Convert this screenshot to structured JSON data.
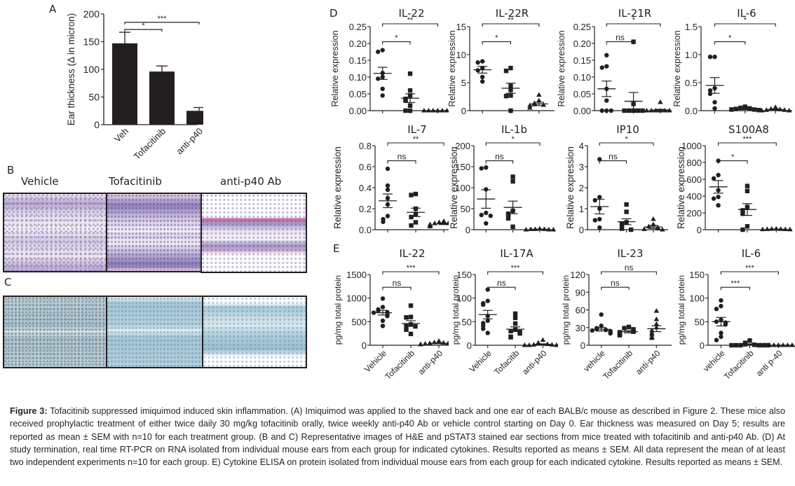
{
  "panel_labels": {
    "A": "A",
    "B": "B",
    "C": "C",
    "D": "D",
    "E": "E"
  },
  "histology": {
    "columns": [
      "Vehicle",
      "Tofacitinib",
      "anti-p40 Ab"
    ],
    "rows": [
      {
        "panel": "B",
        "stain": "H&E"
      },
      {
        "panel": "C",
        "stain": "pSTAT3"
      }
    ]
  },
  "caption": {
    "label": "Figure 3:",
    "text": " Tofacitinib suppressed imiquimod induced skin inflammation. (A) Imiquimod was applied to the shaved back and one ear of each BALB/c mouse as described in Figure 2. These mice also received prophylactic treatment of either twice daily 30 mg/kg tofacitinib orally, twice weekly anti-p40 Ab or vehicle control starting on Day 0. Ear thickness was measured on Day 5; results are reported as mean ± SEM with n=10 for each treatment group. (B and C) Representative images of H&E and pSTAT3 stained ear sections from mice treated with tofacitinib and anti-p40 Ab. (D) At study termination, real time RT-PCR on RNA isolated from individual mouse ears from each group for indicated cytokines. Results reported as means ± SEM. All data represent the mean of at least two independent experiments n=10 for each group. E) Cytokine ELISA on protein isolated from individual mouse ears from each group for each indicated cytokine. Results reported as means ± SEM."
  },
  "chart_data": [
    {
      "id": "A",
      "type": "bar",
      "title": "",
      "ylabel": "Ear thickness (Δ in micron)",
      "xlabel": "",
      "categories": [
        "Veh",
        "Tofacitinib",
        "anti-p40"
      ],
      "values": [
        147,
        96,
        25
      ],
      "errors": [
        20,
        10,
        6
      ],
      "ylim": [
        0,
        200
      ],
      "yticks": [
        "0",
        "50",
        "100",
        "150",
        "200"
      ],
      "significance": [
        {
          "from": 0,
          "to": 1,
          "label": "*"
        },
        {
          "from": 0,
          "to": 2,
          "label": "***"
        }
      ]
    },
    {
      "id": "D-IL-22",
      "type": "scatter",
      "title": "IL-22",
      "ylabel": "Relative expression",
      "categories": [
        "Vehicle",
        "Tofacitinib",
        "anti-p40"
      ],
      "ylim": [
        0,
        0.25
      ],
      "yticks": [
        "0.00",
        "0.05",
        "0.10",
        "0.15",
        "0.20",
        "0.25"
      ],
      "series": [
        {
          "name": "Vehicle",
          "marker": "circle",
          "values": [
            0.18,
            0.175,
            0.112,
            0.1,
            0.095,
            0.065,
            0.045
          ],
          "mean": 0.111,
          "sem": 0.018
        },
        {
          "name": "Tofacitinib",
          "marker": "square",
          "values": [
            0.11,
            0.06,
            0.045,
            0.035,
            0.03,
            0.015,
            0.0,
            0.0
          ],
          "mean": 0.037,
          "sem": 0.013
        },
        {
          "name": "anti-p40",
          "marker": "triangle",
          "values": [
            0,
            0,
            0,
            0,
            0,
            0,
            0
          ],
          "mean": 0.0,
          "sem": 0.0
        }
      ],
      "significance": [
        {
          "from": 0,
          "to": 1,
          "label": "*"
        },
        {
          "from": 0,
          "to": 2,
          "label": "**"
        }
      ]
    },
    {
      "id": "D-IL-22R",
      "type": "scatter",
      "title": "IL-22R",
      "ylabel": "Relative expression",
      "categories": [
        "Vehicle",
        "Tofacitinib",
        "anti-p40"
      ],
      "ylim": [
        0,
        15
      ],
      "yticks": [
        "0",
        "5",
        "10",
        "15"
      ],
      "series": [
        {
          "name": "Vehicle",
          "marker": "circle",
          "values": [
            8.8,
            8.6,
            7.6,
            7.2,
            6.0,
            5.2
          ],
          "mean": 7.3,
          "sem": 0.6
        },
        {
          "name": "Tofacitinib",
          "marker": "square",
          "values": [
            7.6,
            7.1,
            4.4,
            3.7,
            2.7,
            2.6,
            0.0
          ],
          "mean": 4.0,
          "sem": 0.9
        },
        {
          "name": "anti-p40",
          "marker": "triangle",
          "values": [
            2.8,
            1.8,
            1.3,
            1.1,
            1.0,
            0.9,
            0.5
          ],
          "mean": 1.2,
          "sem": 0.3
        }
      ],
      "significance": [
        {
          "from": 0,
          "to": 1,
          "label": "*"
        },
        {
          "from": 0,
          "to": 2,
          "label": "**"
        }
      ]
    },
    {
      "id": "D-IL-21R",
      "type": "scatter",
      "title": "IL-21R",
      "ylabel": "Relative expression",
      "categories": [
        "Vehicle",
        "Tofacitinib",
        "anti-p40"
      ],
      "ylim": [
        0,
        0.25
      ],
      "yticks": [
        "0.00",
        "0.05",
        "0.10",
        "0.15",
        "0.20",
        "0.25"
      ],
      "series": [
        {
          "name": "Vehicle",
          "marker": "circle",
          "values": [
            0.165,
            0.132,
            0.128,
            0.065,
            0.03,
            0.0,
            0.0,
            0.0
          ],
          "mean": 0.065,
          "sem": 0.023
        },
        {
          "name": "Tofacitinib",
          "marker": "square",
          "values": [
            0.205,
            0.02,
            0.0,
            0.0,
            0.0,
            0.0,
            0.0
          ],
          "mean": 0.028,
          "sem": 0.026
        },
        {
          "name": "anti-p40",
          "marker": "triangle",
          "values": [
            0.025,
            0,
            0,
            0,
            0,
            0,
            0
          ],
          "mean": 0.002,
          "sem": 0.002
        }
      ],
      "significance": [
        {
          "from": 0,
          "to": 1,
          "label": "ns"
        },
        {
          "from": 0,
          "to": 2,
          "label": "*"
        }
      ]
    },
    {
      "id": "D-IL-6",
      "type": "scatter",
      "title": "IL-6",
      "ylabel": "Relative expression",
      "categories": [
        "Vehicle",
        "Tofacitinib",
        "anti-p40"
      ],
      "ylim": [
        0,
        1.5
      ],
      "yticks": [
        "0.0",
        "0.5",
        "1.0",
        "1.5"
      ],
      "series": [
        {
          "name": "Vehicle",
          "marker": "circle",
          "values": [
            0.96,
            0.96,
            0.4,
            0.36,
            0.3,
            0.15,
            0.04
          ],
          "mean": 0.45,
          "sem": 0.14
        },
        {
          "name": "Tofacitinib",
          "marker": "square",
          "values": [
            0.07,
            0.05,
            0.04,
            0.03,
            0.02,
            0.02,
            0.01
          ],
          "mean": 0.03,
          "sem": 0.01
        },
        {
          "name": "anti-p40",
          "marker": "triangle",
          "values": [
            0.06,
            0.03,
            0.02,
            0.01,
            0.01,
            0.0,
            0.0
          ],
          "mean": 0.02,
          "sem": 0.01
        }
      ],
      "significance": [
        {
          "from": 0,
          "to": 1,
          "label": "*"
        },
        {
          "from": 0,
          "to": 2,
          "label": "*"
        }
      ]
    },
    {
      "id": "D-IL-7",
      "type": "scatter",
      "title": "IL-7",
      "ylabel": "Relative expression",
      "categories": [
        "Vehicle",
        "Tofacitinib",
        "anti-p40"
      ],
      "ylim": [
        0,
        0.8
      ],
      "yticks": [
        "0.0",
        "0.2",
        "0.4",
        "0.6",
        "0.8"
      ],
      "series": [
        {
          "name": "Vehicle",
          "marker": "circle",
          "values": [
            0.58,
            0.42,
            0.38,
            0.3,
            0.24,
            0.13,
            0.1,
            0.075
          ],
          "mean": 0.275,
          "sem": 0.065
        },
        {
          "name": "Tofacitinib",
          "marker": "square",
          "values": [
            0.34,
            0.33,
            0.2,
            0.15,
            0.12,
            0.07,
            0.04
          ],
          "mean": 0.165,
          "sem": 0.04
        },
        {
          "name": "anti-p40",
          "marker": "triangle",
          "values": [
            0.08,
            0.07,
            0.06,
            0.06,
            0.05,
            0.05,
            0.04,
            0.03
          ],
          "mean": 0.055,
          "sem": 0.006
        }
      ],
      "significance": [
        {
          "from": 0,
          "to": 1,
          "label": "ns"
        },
        {
          "from": 0,
          "to": 2,
          "label": "**"
        }
      ]
    },
    {
      "id": "D-IL-1b",
      "type": "scatter",
      "title": "IL-1b",
      "ylabel": "Relative expression",
      "categories": [
        "Vehicle",
        "Tofacitinib",
        "anti-p40"
      ],
      "ylim": [
        0,
        200
      ],
      "yticks": [
        "0",
        "50",
        "100",
        "150",
        "200"
      ],
      "series": [
        {
          "name": "Vehicle",
          "marker": "circle",
          "values": [
            148,
            146,
            96,
            40,
            35,
            33,
            15
          ],
          "mean": 73,
          "sem": 22
        },
        {
          "name": "Tofacitinib",
          "marker": "square",
          "values": [
            126,
            115,
            45,
            38,
            35,
            27,
            7
          ],
          "mean": 53,
          "sem": 15
        },
        {
          "name": "anti-p40",
          "marker": "triangle",
          "values": [
            2,
            1,
            1,
            1,
            0,
            0,
            0
          ],
          "mean": 1,
          "sem": 0.3
        }
      ],
      "significance": [
        {
          "from": 0,
          "to": 1,
          "label": "ns"
        },
        {
          "from": 0,
          "to": 2,
          "label": "*"
        }
      ]
    },
    {
      "id": "D-IP10",
      "type": "scatter",
      "title": "IP10",
      "ylabel": "Relative expression",
      "categories": [
        "Vehicle",
        "Tofacitinib",
        "anti-p40"
      ],
      "ylim": [
        0,
        4
      ],
      "yticks": [
        "0",
        "1",
        "2",
        "3",
        "4"
      ],
      "series": [
        {
          "name": "Vehicle",
          "marker": "circle",
          "values": [
            3.35,
            1.55,
            1.4,
            1.0,
            0.5,
            0.45,
            0.1
          ],
          "mean": 1.1,
          "sem": 0.35
        },
        {
          "name": "Tofacitinib",
          "marker": "square",
          "values": [
            1.2,
            0.85,
            0.35,
            0.3,
            0.15,
            0.05,
            0.0
          ],
          "mean": 0.38,
          "sem": 0.14
        },
        {
          "name": "anti-p40",
          "marker": "triangle",
          "values": [
            0.5,
            0.25,
            0.15,
            0.1,
            0.05,
            0.02,
            0.0
          ],
          "mean": 0.13,
          "sem": 0.07
        }
      ],
      "significance": [
        {
          "from": 0,
          "to": 1,
          "label": "ns"
        },
        {
          "from": 0,
          "to": 2,
          "label": "*"
        }
      ]
    },
    {
      "id": "D-S100A8",
      "type": "scatter",
      "title": "S100A8",
      "ylabel": "Relative expression",
      "categories": [
        "Vehicle",
        "Tofacitinib",
        "anti-p40"
      ],
      "ylim": [
        0,
        1000
      ],
      "yticks": [
        "0",
        "200",
        "400",
        "600",
        "800",
        "1000"
      ],
      "series": [
        {
          "name": "Vehicle",
          "marker": "circle",
          "values": [
            820,
            650,
            610,
            470,
            390,
            370,
            290
          ],
          "mean": 510,
          "sem": 75
        },
        {
          "name": "Tofacitinib",
          "marker": "square",
          "values": [
            520,
            460,
            270,
            230,
            190,
            40,
            0
          ],
          "mean": 240,
          "sem": 70
        },
        {
          "name": "anti-p40",
          "marker": "triangle",
          "values": [
            10,
            8,
            6,
            5,
            4,
            3,
            2
          ],
          "mean": 5,
          "sem": 1
        }
      ],
      "significance": [
        {
          "from": 0,
          "to": 1,
          "label": "*"
        },
        {
          "from": 0,
          "to": 2,
          "label": "***"
        }
      ]
    },
    {
      "id": "E-IL-22",
      "type": "scatter",
      "title": "IL-22",
      "ylabel": "pg/mg total protein",
      "categories": [
        "Vehicle",
        "Tofacitinib",
        "anti-p40"
      ],
      "ylim": [
        0,
        1500
      ],
      "yticks": [
        "0",
        "500",
        "1000",
        "1500"
      ],
      "series": [
        {
          "name": "Vehicle",
          "marker": "circle",
          "values": [
            990,
            810,
            760,
            730,
            700,
            690,
            650,
            620,
            520,
            410
          ],
          "mean": 690,
          "sem": 50
        },
        {
          "name": "Tofacitinib",
          "marker": "square",
          "values": [
            840,
            600,
            590,
            440,
            420,
            400,
            330,
            240
          ],
          "mean": 460,
          "sem": 60
        },
        {
          "name": "anti-p40",
          "marker": "triangle",
          "values": [
            90,
            60,
            50,
            40,
            35,
            30,
            25,
            20,
            15,
            10
          ],
          "mean": 40,
          "sem": 8
        }
      ],
      "significance": [
        {
          "from": 0,
          "to": 1,
          "label": "ns"
        },
        {
          "from": 0,
          "to": 2,
          "label": "***"
        }
      ]
    },
    {
      "id": "E-IL-17A",
      "type": "scatter",
      "title": "IL-17A",
      "ylabel": "pg/mg total protein",
      "categories": [
        "Vehicle",
        "Tofacitib",
        "anti-p40"
      ],
      "ylim": [
        0,
        150
      ],
      "yticks": [
        "0",
        "50",
        "100",
        "150"
      ],
      "series": [
        {
          "name": "Vehicle",
          "marker": "circle",
          "values": [
            118,
            94,
            89,
            86,
            62,
            52,
            47,
            41,
            35,
            26
          ],
          "mean": 65,
          "sem": 9
        },
        {
          "name": "Tofacitinib",
          "marker": "square",
          "values": [
            67,
            58,
            46,
            33,
            30,
            28,
            25,
            18,
            17
          ],
          "mean": 34,
          "sem": 5
        },
        {
          "name": "anti-p40",
          "marker": "triangle",
          "values": [
            11,
            5,
            3,
            2,
            1,
            1,
            0,
            0,
            0
          ],
          "mean": 2,
          "sem": 1
        }
      ],
      "significance": [
        {
          "from": 0,
          "to": 1,
          "label": "ns"
        },
        {
          "from": 0,
          "to": 2,
          "label": "***"
        }
      ]
    },
    {
      "id": "E-IL-23",
      "type": "scatter",
      "title": "IL-23",
      "ylabel": "pg/mg total protein",
      "categories": [
        "vehicle",
        "Tofacitinib",
        "anti-p40"
      ],
      "ylim": [
        0,
        120
      ],
      "yticks": [
        "0",
        "30",
        "60",
        "90",
        "120"
      ],
      "series": [
        {
          "name": "vehicle",
          "marker": "circle",
          "values": [
            52,
            33,
            29,
            27,
            26,
            25,
            24,
            22,
            21,
            20
          ],
          "mean": 27,
          "sem": 3
        },
        {
          "name": "Tofacitinib",
          "marker": "square",
          "values": [
            31,
            29,
            27,
            24,
            23,
            22,
            20,
            18,
            17
          ],
          "mean": 23,
          "sem": 2
        },
        {
          "name": "anti-p40",
          "marker": "triangle",
          "values": [
            58,
            44,
            36,
            30,
            25,
            21,
            18,
            14,
            12
          ],
          "mean": 28,
          "sem": 5
        }
      ],
      "significance": [
        {
          "from": 0,
          "to": 1,
          "label": "ns"
        },
        {
          "from": 0,
          "to": 2,
          "label": "ns"
        }
      ]
    },
    {
      "id": "E-IL-6",
      "type": "scatter",
      "title": "IL-6",
      "ylabel": "pg/mg total protein",
      "categories": [
        "vehicle",
        "Tofacitinib",
        "anti p-40"
      ],
      "ylim": [
        0,
        150
      ],
      "yticks": [
        "0",
        "50",
        "100",
        "150"
      ],
      "series": [
        {
          "name": "vehicle",
          "marker": "circle",
          "values": [
            95,
            83,
            77,
            54,
            50,
            48,
            44,
            26,
            18,
            11
          ],
          "mean": 50,
          "sem": 9
        },
        {
          "name": "Tofacitinib",
          "marker": "square",
          "values": [
            10,
            5,
            2,
            1,
            0,
            0,
            0,
            0,
            0,
            0
          ],
          "mean": 2,
          "sem": 1
        },
        {
          "name": "anti p-40",
          "marker": "triangle",
          "values": [
            0,
            0,
            0,
            0,
            0,
            0,
            0,
            0,
            0
          ],
          "mean": 0,
          "sem": 0
        }
      ],
      "significance": [
        {
          "from": 0,
          "to": 1,
          "label": "***"
        },
        {
          "from": 0,
          "to": 2,
          "label": "***"
        }
      ]
    }
  ]
}
